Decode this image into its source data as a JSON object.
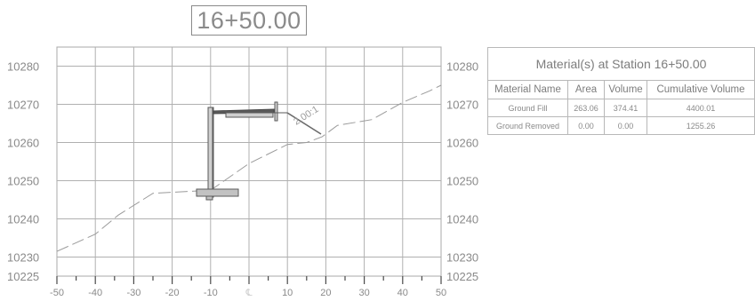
{
  "station_label": "16+50.00",
  "plot": {
    "x_ticks": [
      "-50",
      "-40",
      "-30",
      "-20",
      "-10",
      "10",
      "20",
      "30",
      "40",
      "50"
    ],
    "centerline_symbol": "℄",
    "y_ticks_left": [
      "10280",
      "10270",
      "10260",
      "10250",
      "10240",
      "10230",
      "10225"
    ],
    "y_ticks_right": [
      "10280",
      "10270",
      "10260",
      "10250",
      "10240",
      "10230",
      "10225"
    ],
    "slope_label": "2.00:1",
    "ground_profile_color": "#9a9a9a",
    "structure_color": "#8c8c8c"
  },
  "chart_data": {
    "type": "line",
    "xlim": [
      -50,
      50
    ],
    "ylim": [
      10225,
      10285
    ],
    "series": [
      {
        "x": [
          -50,
          -40,
          -34,
          -25,
          -10,
          0,
          10,
          15,
          19,
          23,
          32,
          40,
          47,
          50
        ],
        "y": [
          10231.5,
          10236,
          10241,
          10246.7,
          10247.5,
          10254.5,
          10259.5,
          10260,
          10261.5,
          10264.5,
          10266,
          10270.5,
          10273.5,
          10275
        ]
      }
    ]
  },
  "table": {
    "title": "Material(s) at Station 16+50.00",
    "headers": [
      "Material Name",
      "Area",
      "Volume",
      "Cumulative Volume"
    ],
    "rows": [
      [
        "Ground Fill",
        "263.06",
        "374.41",
        "4400.01"
      ],
      [
        "Ground Removed",
        "0.00",
        "0.00",
        "1255.26"
      ]
    ]
  }
}
